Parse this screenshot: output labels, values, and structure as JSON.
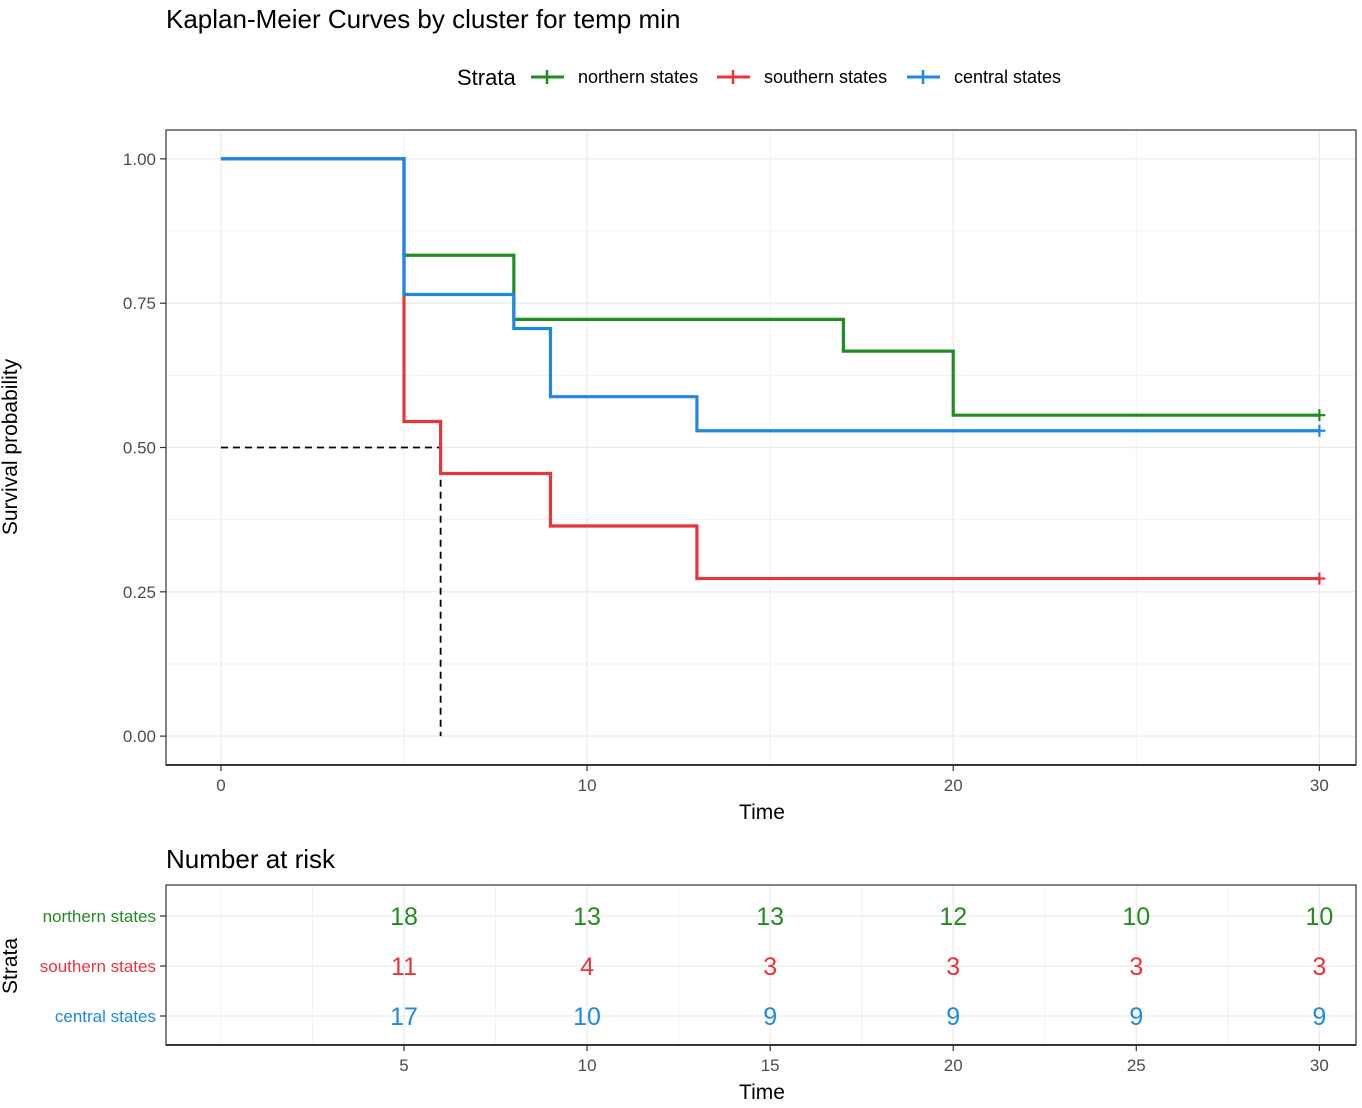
{
  "chart_data": [
    {
      "type": "line",
      "subtype": "kaplan-meier-step",
      "title": "Kaplan-Meier Curves by cluster for temp min",
      "xlabel": "Time",
      "ylabel": "Survival probability",
      "xlim": [
        -1.5,
        31
      ],
      "ylim": [
        -0.05,
        1.05
      ],
      "x_ticks": [
        0,
        10,
        20,
        30
      ],
      "y_ticks": [
        0.0,
        0.25,
        0.5,
        0.75,
        1.0
      ],
      "y_tick_labels": [
        "0.00",
        "0.25",
        "0.50",
        "0.75",
        "1.00"
      ],
      "grid": true,
      "legend": {
        "title": "Strata",
        "position": "top"
      },
      "median_line": {
        "x": 6,
        "y": 0.5
      },
      "series": [
        {
          "name": "northern states",
          "color": "#228B22",
          "steps": [
            [
              0,
              1.0
            ],
            [
              5,
              0.833
            ],
            [
              8,
              0.722
            ],
            [
              17,
              0.667
            ],
            [
              20,
              0.556
            ],
            [
              30,
              0.556
            ]
          ],
          "censor_marks": [
            [
              30,
              0.556
            ]
          ]
        },
        {
          "name": "southern states",
          "color": "#E8353B",
          "steps": [
            [
              0,
              1.0
            ],
            [
              5,
              0.545
            ],
            [
              6,
              0.455
            ],
            [
              9,
              0.364
            ],
            [
              13,
              0.273
            ],
            [
              30,
              0.273
            ]
          ],
          "censor_marks": [
            [
              30,
              0.273
            ]
          ]
        },
        {
          "name": "central states",
          "color": "#1E88E5",
          "steps": [
            [
              0,
              1.0
            ],
            [
              5,
              0.765
            ],
            [
              8,
              0.706
            ],
            [
              9,
              0.588
            ],
            [
              13,
              0.529
            ],
            [
              30,
              0.529
            ]
          ],
          "censor_marks": [
            [
              30,
              0.529
            ]
          ]
        }
      ]
    },
    {
      "type": "table",
      "title": "Number at risk",
      "xlabel": "Time",
      "ylabel": "Strata",
      "xlim": [
        -1.5,
        31
      ],
      "x_ticks": [
        5,
        10,
        15,
        20,
        25,
        30
      ],
      "rows": [
        {
          "name": "northern states",
          "color": "#228B22",
          "values": [
            18,
            13,
            13,
            12,
            10,
            10
          ]
        },
        {
          "name": "southern states",
          "color": "#E8353B",
          "values": [
            11,
            4,
            3,
            3,
            3,
            3
          ]
        },
        {
          "name": "central states",
          "color": "#1E88E5",
          "values": [
            17,
            10,
            9,
            9,
            9,
            9
          ]
        }
      ]
    }
  ]
}
